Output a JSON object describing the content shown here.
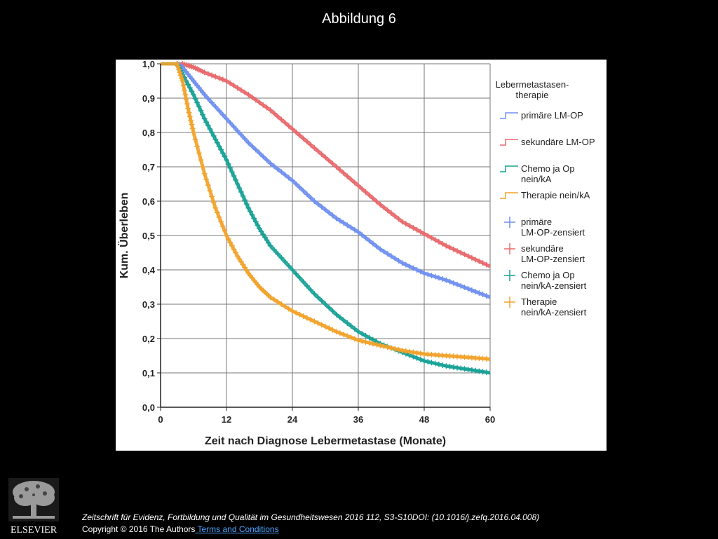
{
  "slide": {
    "title": "Abbildung 6",
    "citation": "Zeitschrift für Evidenz, Fortbildung und Qualität im Gesundheitswesen 2016 112, S3-S10DOI: (10.1016/j.zefq.2016.04.008)",
    "copyright": "Copyright © 2016 The Authors",
    "terms_link": " Terms and Conditions",
    "publisher_logo_text": "ELSEVIER"
  },
  "chart_data": {
    "type": "line",
    "title": "",
    "xlabel": "Zeit nach Diagnose Lebermetastase (Monate)",
    "ylabel": "Kum. Überleben",
    "xlim": [
      0,
      60
    ],
    "ylim": [
      0,
      1
    ],
    "x_ticks": [
      0,
      12,
      24,
      36,
      48,
      60
    ],
    "x_tick_labels": [
      "0",
      "12",
      "24",
      "36",
      "48",
      "60"
    ],
    "y_ticks": [
      0,
      0.1,
      0.2,
      0.3,
      0.4,
      0.5,
      0.6,
      0.7,
      0.8,
      0.9,
      1.0
    ],
    "y_tick_labels": [
      "0,0",
      "0,1",
      "0,2",
      "0,3",
      "0,4",
      "0,5",
      "0,6",
      "0,7",
      "0,8",
      "0,9",
      "1,0"
    ],
    "grid": true,
    "legend_title": "Lebermetastasen-therapie",
    "legend_placement": "right",
    "legend_entries": [
      {
        "label": "primäre LM-OP",
        "color": "#6f8ff0",
        "marker": "step"
      },
      {
        "label": "sekundäre LM-OP",
        "color": "#e8686b",
        "marker": "step"
      },
      {
        "label": "Chemo ja Op nein/kA",
        "color": "#17a196",
        "marker": "step"
      },
      {
        "label": "Therapie nein/kA",
        "color": "#f2a22a",
        "marker": "step"
      },
      {
        "label": "primäre LM-OP-zensiert",
        "color": "#6f8ff0",
        "marker": "plus"
      },
      {
        "label": "sekundäre LM-OP-zensiert",
        "color": "#e8686b",
        "marker": "plus"
      },
      {
        "label": "Chemo ja Op nein/kA-zensiert",
        "color": "#17a196",
        "marker": "plus"
      },
      {
        "label": "Therapie nein/kA-zensiert",
        "color": "#f2a22a",
        "marker": "plus"
      }
    ],
    "series": [
      {
        "name": "sekundäre LM-OP",
        "color": "#e8686b",
        "x": [
          0,
          4,
          6,
          8,
          12,
          16,
          20,
          24,
          28,
          32,
          36,
          40,
          44,
          48,
          52,
          56,
          60
        ],
        "y": [
          1.0,
          1.0,
          0.99,
          0.975,
          0.95,
          0.91,
          0.865,
          0.81,
          0.755,
          0.7,
          0.645,
          0.59,
          0.54,
          0.505,
          0.47,
          0.44,
          0.41
        ]
      },
      {
        "name": "primäre LM-OP",
        "color": "#6f8ff0",
        "x": [
          0,
          3,
          4,
          6,
          8,
          12,
          16,
          20,
          24,
          28,
          32,
          36,
          40,
          44,
          48,
          52,
          56,
          60
        ],
        "y": [
          1.0,
          1.0,
          0.99,
          0.95,
          0.91,
          0.84,
          0.77,
          0.71,
          0.66,
          0.6,
          0.55,
          0.51,
          0.46,
          0.42,
          0.39,
          0.37,
          0.345,
          0.32
        ]
      },
      {
        "name": "Chemo ja Op nein/kA",
        "color": "#17a196",
        "x": [
          0,
          3,
          4,
          6,
          8,
          10,
          12,
          14,
          16,
          18,
          20,
          24,
          28,
          32,
          36,
          40,
          44,
          48,
          52,
          56,
          60
        ],
        "y": [
          1.0,
          1.0,
          0.97,
          0.91,
          0.84,
          0.78,
          0.72,
          0.65,
          0.58,
          0.52,
          0.47,
          0.4,
          0.33,
          0.27,
          0.22,
          0.185,
          0.16,
          0.135,
          0.12,
          0.11,
          0.1
        ]
      },
      {
        "name": "Therapie nein/kA",
        "color": "#f2a22a",
        "x": [
          0,
          3,
          4,
          5,
          6,
          8,
          10,
          12,
          14,
          16,
          18,
          20,
          24,
          28,
          32,
          36,
          40,
          44,
          48,
          52,
          56,
          60
        ],
        "y": [
          1.0,
          1.0,
          0.95,
          0.87,
          0.8,
          0.68,
          0.58,
          0.5,
          0.44,
          0.39,
          0.35,
          0.32,
          0.28,
          0.25,
          0.22,
          0.195,
          0.18,
          0.165,
          0.155,
          0.15,
          0.145,
          0.14
        ]
      }
    ]
  },
  "colors": {
    "background": "#000000",
    "panel": "#ffffff",
    "grid": "#777777",
    "link": "#4da3ff"
  }
}
